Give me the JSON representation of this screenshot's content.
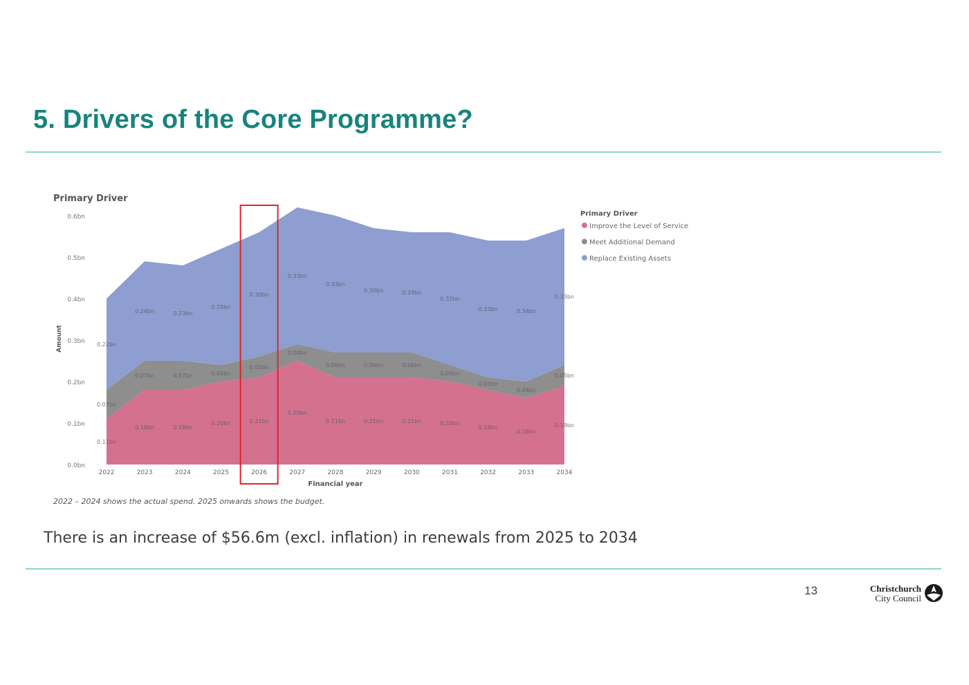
{
  "slide": {
    "title": "5. Drivers of the Core Programme?",
    "summary": "There is an increase of $56.6m (excl. inflation) in renewals from 2025 to 2034",
    "page_number": "13",
    "logo": {
      "line1": "Christchurch",
      "line2": "City Council"
    }
  },
  "colors": {
    "title": "#17847c",
    "rule": "#8fd4cc",
    "improve": "#d4718f",
    "demand": "#8e8e8e",
    "replace": "#8e9ed0",
    "highlight": "#d9262b"
  },
  "chart_data": {
    "type": "area",
    "stacked": true,
    "title": "Primary Driver",
    "xlabel": "Financial year",
    "ylabel": "Amount",
    "ylim": [
      0,
      0.6
    ],
    "y_ticks": [
      "0.0bn",
      "0.1bn",
      "0.2bn",
      "0.3bn",
      "0.4bn",
      "0.5bn",
      "0.6bn"
    ],
    "categories": [
      "2022",
      "2023",
      "2024",
      "2025",
      "2026",
      "2027",
      "2028",
      "2029",
      "2030",
      "2031",
      "2032",
      "2033",
      "2034"
    ],
    "series": [
      {
        "name": "Improve the Level of Service",
        "color": "#d4718f",
        "values": [
          0.11,
          0.18,
          0.18,
          0.2,
          0.21,
          0.25,
          0.21,
          0.21,
          0.21,
          0.2,
          0.18,
          0.16,
          0.19
        ],
        "labels": [
          "0.11bn",
          "0.18bn",
          "0.18bn",
          "0.20bn",
          "0.21bn",
          "0.25bn",
          "0.21bn",
          "0.21bn",
          "0.21bn",
          "0.20bn",
          "0.18bn",
          "0.16bn",
          "0.19bn"
        ]
      },
      {
        "name": "Meet Additional Demand",
        "color": "#8e8e8e",
        "values": [
          0.07,
          0.07,
          0.07,
          0.04,
          0.05,
          0.04,
          0.06,
          0.06,
          0.06,
          0.04,
          0.03,
          0.04,
          0.05
        ],
        "labels": [
          "0.07bn",
          "0.07bn",
          "0.07bn",
          "0.04bn",
          "0.05bn",
          "0.04bn",
          "0.06bn",
          "0.06bn",
          "0.06bn",
          "0.04bn",
          "0.03bn",
          "0.04bn",
          "0.05bn"
        ]
      },
      {
        "name": "Replace Existing Assets",
        "color": "#8e9ed0",
        "values": [
          0.22,
          0.24,
          0.23,
          0.28,
          0.3,
          0.33,
          0.33,
          0.3,
          0.29,
          0.32,
          0.33,
          0.34,
          0.33
        ],
        "labels": [
          "0.22bn",
          "0.24bn",
          "0.23bn",
          "0.28bn",
          "0.30bn",
          "0.33bn",
          "0.33bn",
          "0.30bn",
          "0.29bn",
          "0.32bn",
          "0.33bn",
          "0.34bn",
          "0.33bn"
        ]
      }
    ],
    "legend": {
      "title": "Primary Driver",
      "position": "right"
    },
    "highlight_category": "2026",
    "footnote": "2022 – 2024 shows the actual spend.  2025 onwards shows the budget."
  }
}
